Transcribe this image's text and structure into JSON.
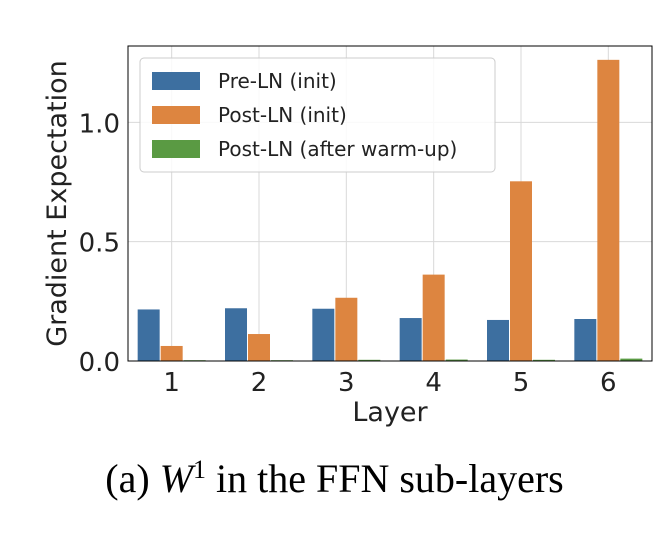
{
  "chart_data": {
    "type": "bar",
    "xlabel": "Layer",
    "ylabel": "Gradient Expectation",
    "categories": [
      "1",
      "2",
      "3",
      "4",
      "5",
      "6"
    ],
    "ylim": [
      0,
      1.32
    ],
    "yticks": [
      0.0,
      0.5,
      1.0
    ],
    "ytick_labels": [
      "0.0",
      "0.5",
      "1.0"
    ],
    "grid": true,
    "legend_position": "top-left",
    "series": [
      {
        "name": "Pre-LN (init)",
        "color": "#3d6fa0",
        "values": [
          0.216,
          0.221,
          0.219,
          0.18,
          0.172,
          0.176
        ]
      },
      {
        "name": "Post-LN (init)",
        "color": "#dd8540",
        "values": [
          0.063,
          0.113,
          0.265,
          0.362,
          0.753,
          1.262
        ]
      },
      {
        "name": "Post-LN (after warm-up)",
        "color": "#5a9a43",
        "values": [
          0.001,
          0.002,
          0.005,
          0.006,
          0.005,
          0.01
        ]
      }
    ]
  },
  "caption": {
    "prefix": "(a)",
    "variable": "W",
    "superscript": "1",
    "suffix": "in the FFN sub-layers"
  }
}
